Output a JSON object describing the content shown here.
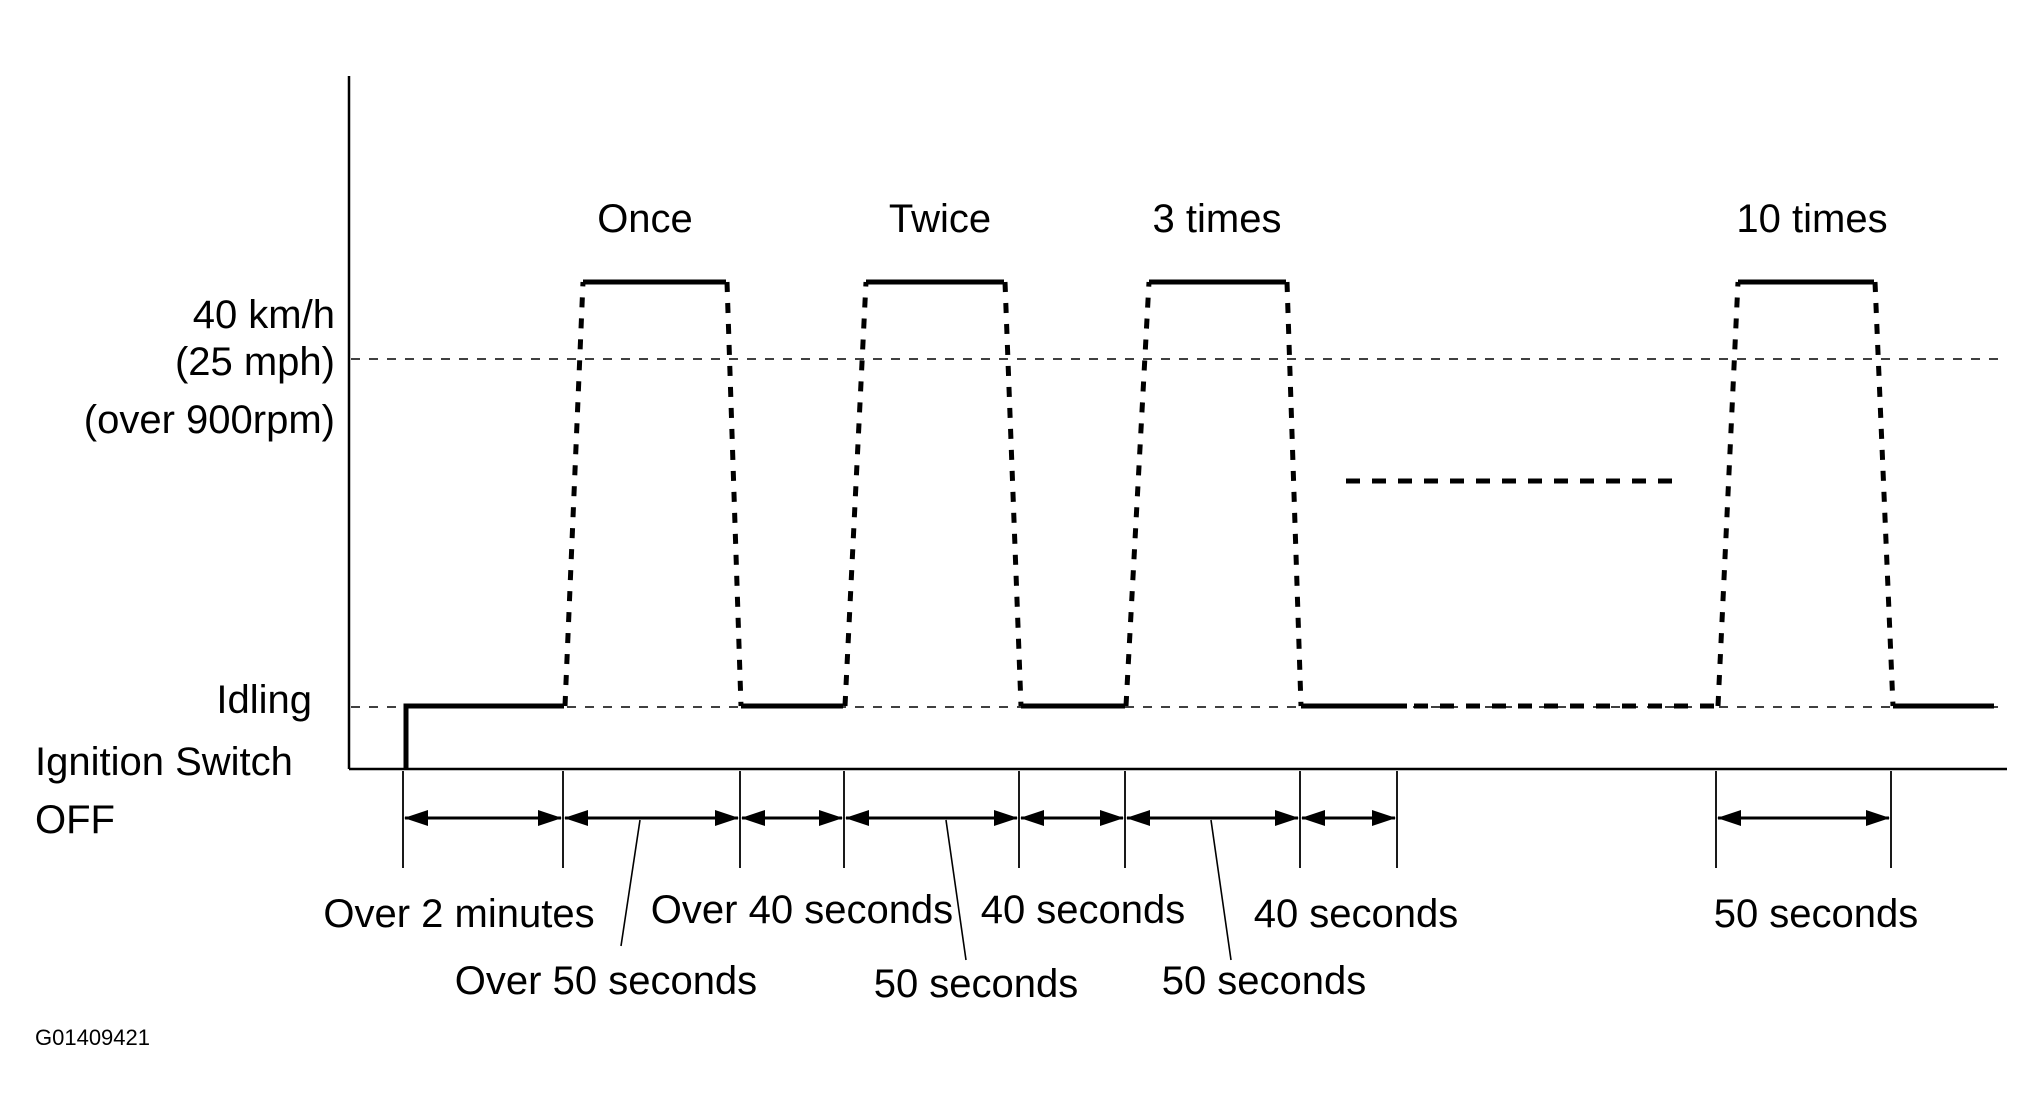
{
  "y_levels": {
    "speed_line1": "40 km/h",
    "speed_line2": "(25 mph)",
    "speed_line3": "(over 900rpm)",
    "idle": "Idling",
    "off_line1": "Ignition Switch",
    "off_line2": "OFF"
  },
  "cycle_counts": [
    "Once",
    "Twice",
    "3 times",
    "10 times"
  ],
  "durations_upper": [
    "Over 2 minutes",
    "Over 40 seconds",
    "40 seconds",
    "40 seconds",
    "50 seconds"
  ],
  "durations_lower": [
    "Over 50 seconds",
    "50 seconds",
    "50 seconds"
  ],
  "figure_id": "G01409421"
}
